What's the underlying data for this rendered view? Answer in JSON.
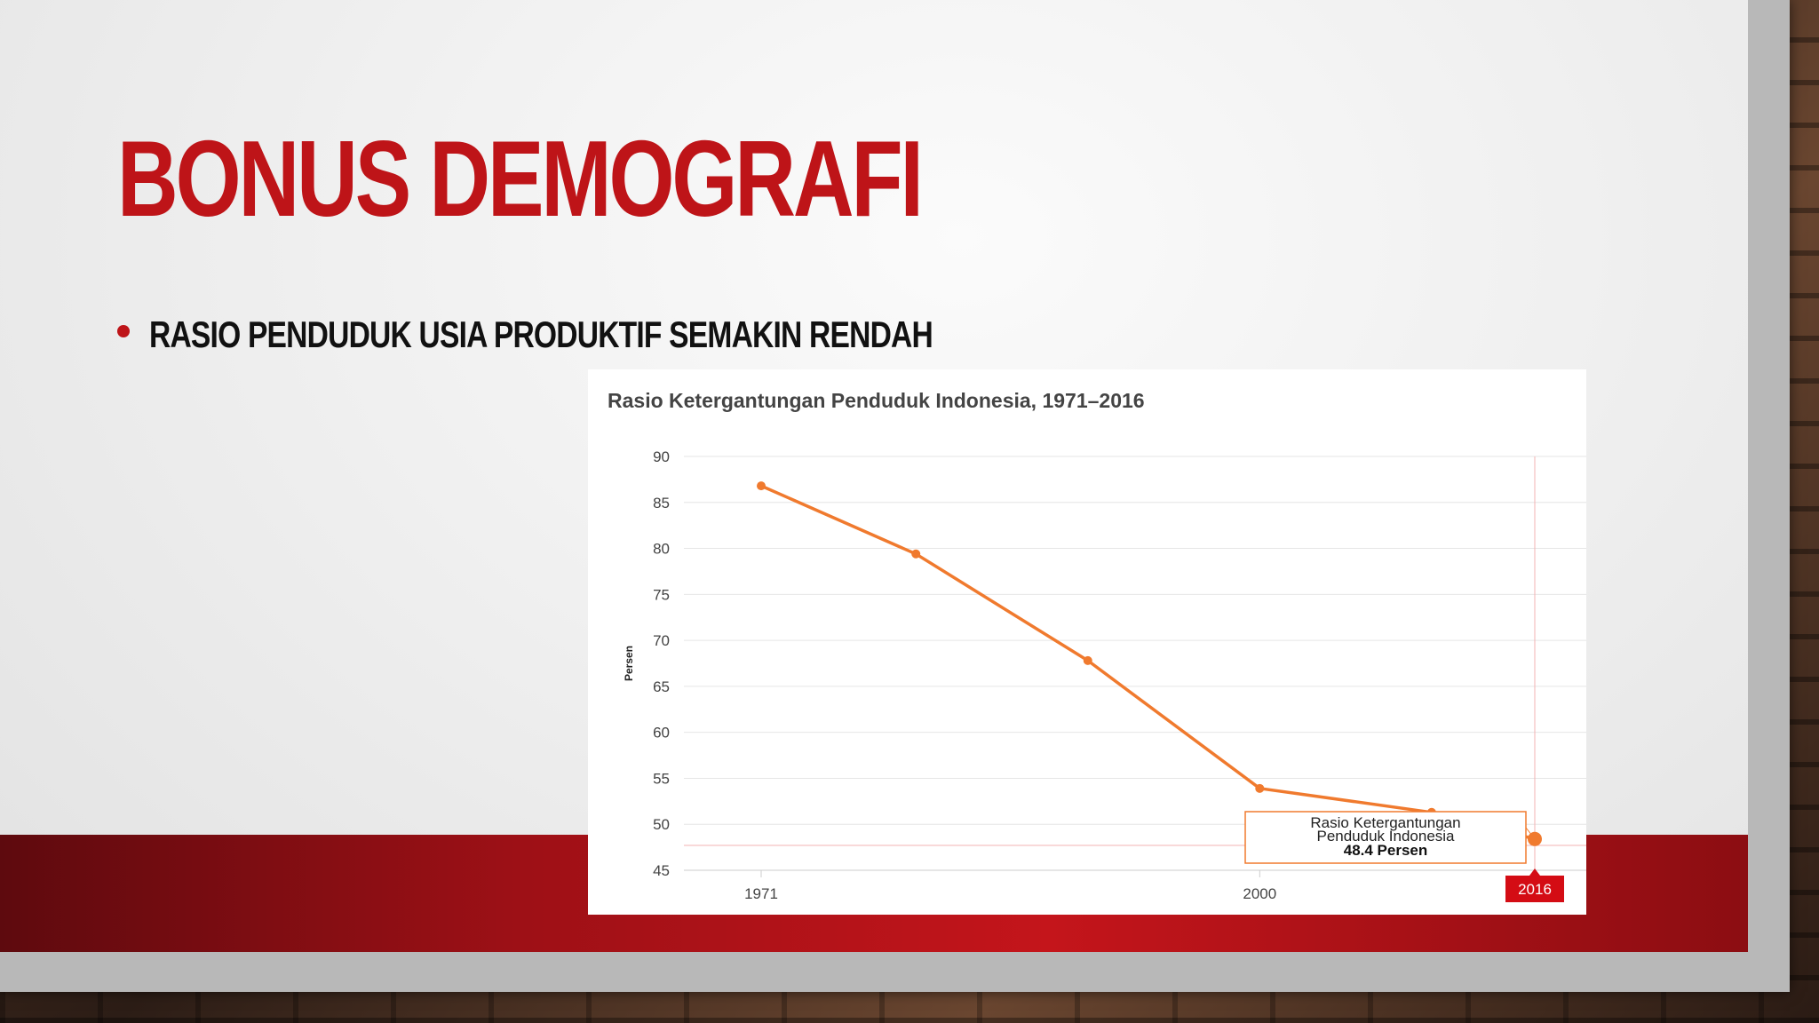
{
  "slide": {
    "title": "BONUS DEMOGRAFI",
    "bullet": "RASIO PENDUDUK USIA PRODUKTIF SEMAKIN RENDAH"
  },
  "colors": {
    "accent": "#be1418",
    "line": "#f07a2e",
    "band": "#c4151b"
  },
  "chart_data": {
    "type": "line",
    "title": "Rasio Ketergantungan Penduduk Indonesia, 1971–2016",
    "ylabel": "Persen",
    "xlabel": "",
    "ylim": [
      45,
      90
    ],
    "yticks": [
      90,
      85,
      80,
      75,
      70,
      65,
      60,
      55,
      50,
      45
    ],
    "x": [
      1971,
      1980,
      1990,
      2000,
      2010,
      2016
    ],
    "xtick_labels": [
      "1971",
      "2000"
    ],
    "series": [
      {
        "values": [
          86.8,
          79.4,
          67.8,
          53.9,
          51.3,
          48.4
        ]
      }
    ],
    "grid": true,
    "tooltip": {
      "series_label": "Rasio Ketergantungan Penduduk Indonesia",
      "value_text": "48.4 Persen"
    },
    "highlight_x_label": "2016"
  }
}
